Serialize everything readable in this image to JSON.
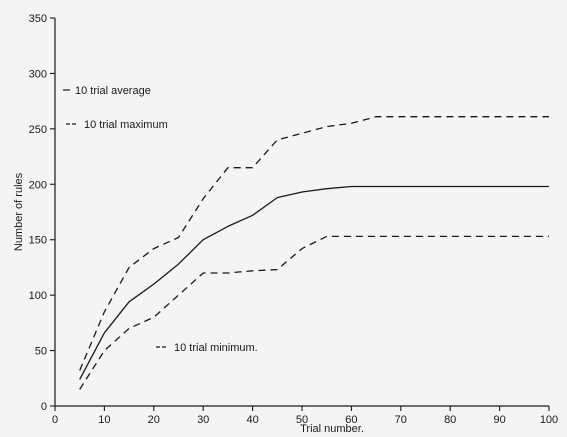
{
  "chart_data": {
    "type": "line",
    "title": "",
    "xlabel": "Trial number.",
    "ylabel": "Number of rules",
    "xlim": [
      0,
      100
    ],
    "ylim": [
      0,
      350
    ],
    "xticks": [
      0,
      10,
      20,
      30,
      40,
      50,
      60,
      70,
      80,
      90,
      100
    ],
    "yticks": [
      0,
      50,
      100,
      150,
      200,
      250,
      300,
      350
    ],
    "grid": false,
    "series": [
      {
        "name": "10 trial maximum",
        "style": "dashed",
        "x": [
          5,
          10,
          15,
          20,
          25,
          30,
          35,
          40,
          45,
          50,
          55,
          60,
          65,
          70,
          80,
          90,
          100
        ],
        "y": [
          32,
          85,
          125,
          142,
          152,
          187,
          215,
          215,
          240,
          246,
          252,
          255,
          261,
          261,
          261,
          261,
          261
        ]
      },
      {
        "name": "10 trial average",
        "style": "solid",
        "x": [
          5,
          10,
          15,
          20,
          25,
          30,
          35,
          40,
          45,
          50,
          55,
          60,
          65,
          70,
          80,
          90,
          100
        ],
        "y": [
          24,
          66,
          94,
          110,
          128,
          150,
          162,
          172,
          188,
          193,
          196,
          198,
          198,
          198,
          198,
          198,
          198
        ]
      },
      {
        "name": "10 trial minimum.",
        "style": "dashed",
        "x": [
          5,
          10,
          15,
          20,
          25,
          30,
          35,
          40,
          45,
          50,
          55,
          60,
          70,
          80,
          90,
          100
        ],
        "y": [
          15,
          50,
          70,
          80,
          100,
          120,
          120,
          122,
          123,
          142,
          153,
          153,
          153,
          153,
          153,
          153
        ]
      }
    ],
    "annotations": [
      {
        "text": "10 trial average",
        "series": "10 trial average",
        "marker": "solid"
      },
      {
        "text": "10 trial maximum",
        "series": "10 trial maximum",
        "marker": "dashed"
      },
      {
        "text": "10 trial minimum.",
        "series": "10 trial minimum.",
        "marker": "dashed"
      }
    ]
  }
}
